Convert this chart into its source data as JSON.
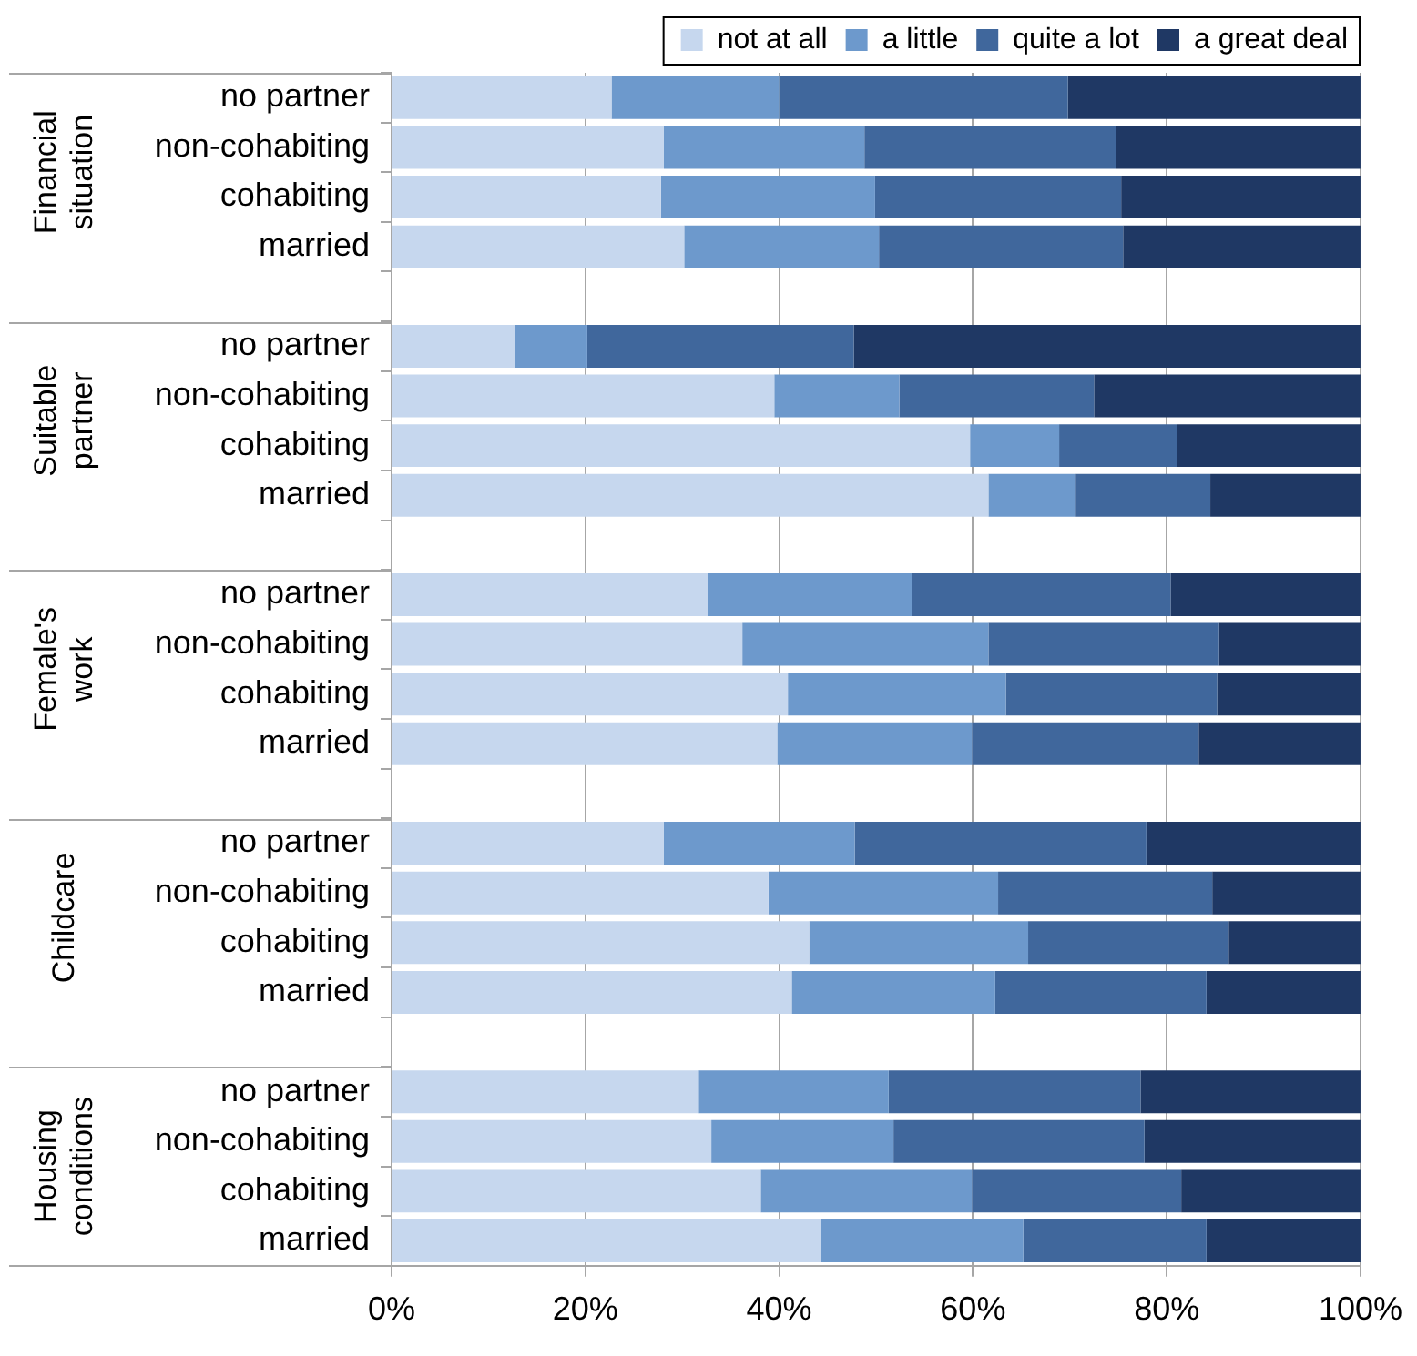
{
  "chart_data": {
    "type": "bar",
    "orientation": "horizontal",
    "stacked": true,
    "categories": [
      "no partner",
      "non-cohabiting",
      "cohabiting",
      "married",
      null,
      "no partner",
      "non-cohabiting",
      "cohabiting",
      "married",
      null,
      "no partner",
      "non-cohabiting",
      "cohabiting",
      "married",
      null,
      "no partner",
      "non-cohabiting",
      "cohabiting",
      "married",
      null,
      "no partner",
      "non-cohabiting",
      "cohabiting",
      "married"
    ],
    "series": [
      {
        "name": "not at all",
        "color": "#c6d7ee",
        "values": [
          22.7,
          28.1,
          27.8,
          30.2,
          null,
          12.7,
          39.5,
          59.7,
          61.6,
          null,
          32.7,
          36.2,
          40.9,
          39.8,
          null,
          28.1,
          38.9,
          43.1,
          41.3,
          null,
          31.7,
          33.0,
          38.1,
          44.3
        ]
      },
      {
        "name": "a little",
        "color": "#6d99cc",
        "values": [
          17.3,
          20.7,
          22.1,
          20.1,
          null,
          7.5,
          12.9,
          9.2,
          9.0,
          null,
          21.0,
          25.4,
          22.5,
          20.1,
          null,
          19.7,
          23.7,
          22.6,
          21.0,
          null,
          19.6,
          18.8,
          21.8,
          20.9
        ]
      },
      {
        "name": "quite a lot",
        "color": "#40679c",
        "values": [
          29.8,
          26.0,
          25.4,
          25.2,
          null,
          27.5,
          20.1,
          12.2,
          13.9,
          null,
          26.7,
          23.8,
          21.8,
          23.4,
          null,
          30.1,
          22.1,
          20.7,
          21.8,
          null,
          26.0,
          25.9,
          21.6,
          18.9
        ]
      },
      {
        "name": "a great deal",
        "color": "#1f3864",
        "values": [
          30.2,
          25.2,
          24.7,
          24.5,
          null,
          52.3,
          27.5,
          18.9,
          15.5,
          null,
          19.6,
          14.6,
          14.8,
          16.7,
          null,
          22.1,
          15.3,
          13.6,
          15.9,
          null,
          22.7,
          22.3,
          18.5,
          15.9
        ]
      }
    ],
    "xlim": [
      0,
      100
    ],
    "xticks": [
      {
        "value": 0,
        "label": "0%"
      },
      {
        "value": 20,
        "label": "20%"
      },
      {
        "value": 40,
        "label": "40%"
      },
      {
        "value": 60,
        "label": "60%"
      },
      {
        "value": 80,
        "label": "80%"
      },
      {
        "value": 100,
        "label": "100%"
      }
    ],
    "grid": "x",
    "legend": "top right",
    "annotations": [
      "Financial situation",
      "Suitable partner",
      "Female's work",
      "Childcare",
      "Housing conditions"
    ]
  }
}
